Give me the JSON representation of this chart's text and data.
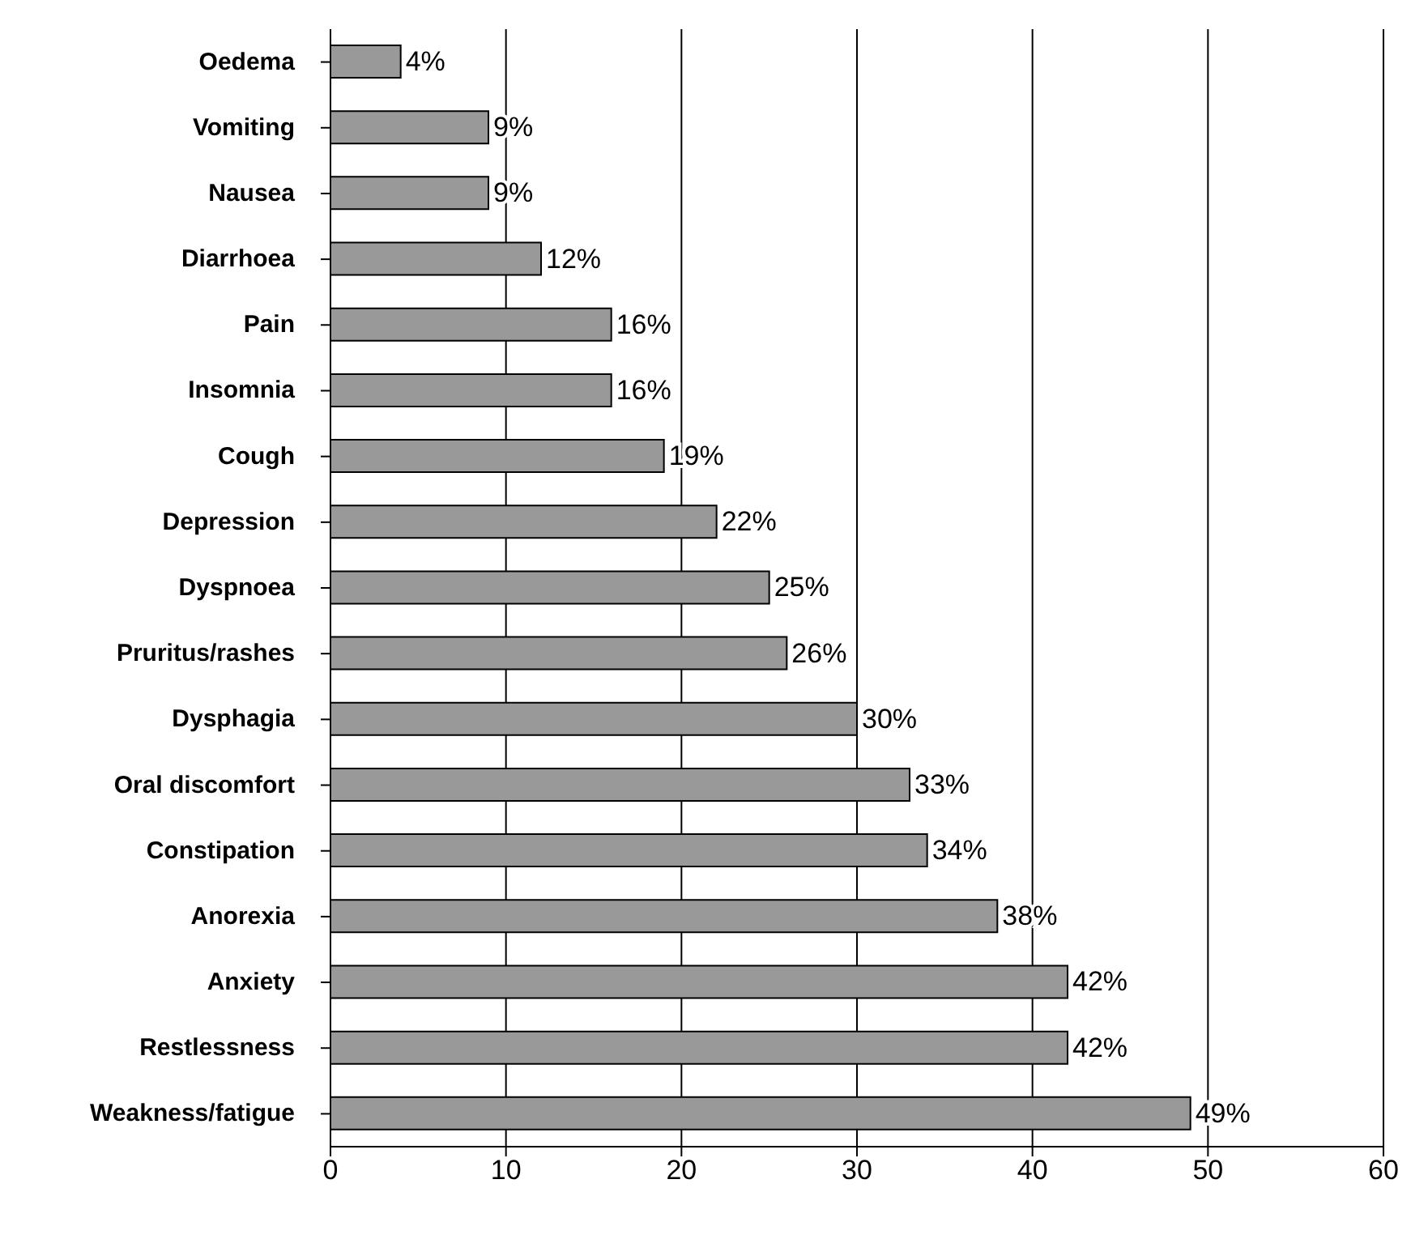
{
  "chart_data": {
    "type": "bar",
    "orientation": "horizontal",
    "categories": [
      "Oedema",
      "Vomiting",
      "Nausea",
      "Diarrhoea",
      "Pain",
      "Insomnia",
      "Cough",
      "Depression",
      "Dyspnoea",
      "Pruritus/rashes",
      "Dysphagia",
      "Oral discomfort",
      "Constipation",
      "Anorexia",
      "Anxiety",
      "Restlessness",
      "Weakness/fatigue"
    ],
    "values": [
      4,
      9,
      9,
      12,
      16,
      16,
      19,
      22,
      25,
      26,
      30,
      33,
      34,
      38,
      42,
      42,
      49
    ],
    "value_labels": [
      "4%",
      "9%",
      "9%",
      "12%",
      "16%",
      "16%",
      "19%",
      "22%",
      "25%",
      "26%",
      "30%",
      "33%",
      "34%",
      "38%",
      "42%",
      "42%",
      "49%"
    ],
    "color": "#999999",
    "xlim": [
      0,
      60
    ],
    "xticks": [
      0,
      10,
      20,
      30,
      40,
      50,
      60
    ],
    "grid": "x"
  }
}
